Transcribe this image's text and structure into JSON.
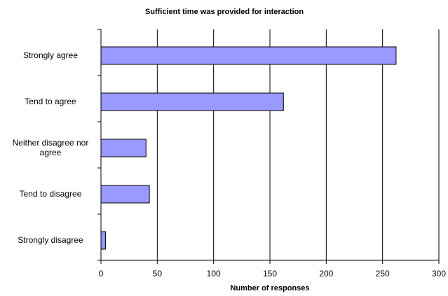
{
  "chart_data": {
    "type": "bar",
    "orientation": "horizontal",
    "title": "Sufficient time was provided for interaction",
    "xlabel": "Number of responses",
    "categories": [
      "Strongly agree",
      "Tend to agree",
      "Neither disagree nor agree",
      "Tend to disagree",
      "Strongly disagree"
    ],
    "values": [
      262,
      162,
      40,
      43,
      4
    ],
    "color": "#9999ff",
    "xlim": [
      0,
      300
    ],
    "xticks": [
      0,
      50,
      100,
      150,
      200,
      250,
      300
    ],
    "grid": true
  }
}
